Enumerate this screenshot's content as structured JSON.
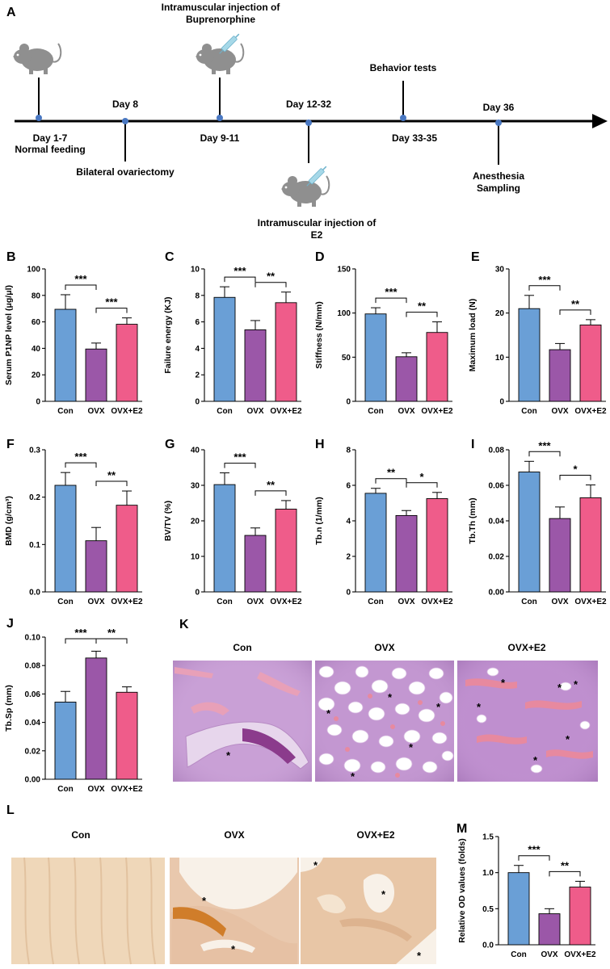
{
  "colors": {
    "con": "#6a9fd6",
    "ovx": "#9b57a8",
    "ovx_e2": "#ef5c8a",
    "mouse": "#8f8f8f",
    "he_bg": "#c9a0d6",
    "stain_bg": "#efd7b9"
  },
  "timeline": {
    "letter": "A",
    "events": [
      {
        "label_lines": [
          "Day 1-7",
          "Normal feeding"
        ],
        "side": "below",
        "mouse": true,
        "syringe": false
      },
      {
        "label_lines": [
          "Day 8"
        ],
        "side": "above",
        "mouse": false,
        "syringe": false,
        "extra_lines": [
          "Bilateral ovariectomy"
        ]
      },
      {
        "label_lines": [
          "Day 9-11"
        ],
        "side": "below",
        "mouse": true,
        "syringe": true,
        "extra_lines": [
          "Intramuscular injection of",
          "Buprenorphine"
        ]
      },
      {
        "label_lines": [
          "Day 12-32"
        ],
        "side": "above",
        "mouse": true,
        "syringe": true,
        "extra_lines": [
          "Intramuscular injection of",
          "E2"
        ]
      },
      {
        "label_lines": [
          "Day 33-35"
        ],
        "side": "below",
        "mouse": false,
        "syringe": false,
        "extra_lines": [
          "Behavior tests"
        ]
      },
      {
        "label_lines": [
          "Day 36"
        ],
        "side": "above",
        "mouse": false,
        "syringe": false,
        "extra_lines": [
          "Anesthesia",
          "Sampling"
        ]
      }
    ]
  },
  "chart_data": [
    {
      "letter": "B",
      "type": "bar",
      "ylabel": "Serum P1NP level (μg/μl)",
      "categories": [
        "Con",
        "OVX",
        "OVX+E2"
      ],
      "values": [
        69.5,
        39.5,
        58.2
      ],
      "errors": [
        11,
        4.5,
        4.8
      ],
      "ylim": [
        0,
        100
      ],
      "yticks": [
        "0",
        "20",
        "40",
        "60",
        "80",
        "100"
      ],
      "sig": [
        {
          "from": 0,
          "to": 1,
          "label": "***"
        },
        {
          "from": 1,
          "to": 2,
          "label": "***"
        }
      ]
    },
    {
      "letter": "C",
      "type": "bar",
      "ylabel": "Failure energy (KJ)",
      "categories": [
        "Con",
        "OVX",
        "OVX+E2"
      ],
      "values": [
        7.85,
        5.4,
        7.45
      ],
      "errors": [
        0.8,
        0.7,
        0.8
      ],
      "ylim": [
        0,
        10
      ],
      "yticks": [
        "0",
        "2",
        "4",
        "6",
        "8",
        "10"
      ],
      "sig": [
        {
          "from": 0,
          "to": 1,
          "label": "***"
        },
        {
          "from": 1,
          "to": 2,
          "label": "**"
        }
      ]
    },
    {
      "letter": "D",
      "type": "bar",
      "ylabel": "Stiffness (N/mm)",
      "categories": [
        "Con",
        "OVX",
        "OVX+E2"
      ],
      "values": [
        99,
        50.5,
        78
      ],
      "errors": [
        7,
        4.5,
        12
      ],
      "ylim": [
        0,
        150
      ],
      "yticks": [
        "0",
        "50",
        "100",
        "150"
      ],
      "sig": [
        {
          "from": 0,
          "to": 1,
          "label": "***"
        },
        {
          "from": 1,
          "to": 2,
          "label": "**"
        }
      ]
    },
    {
      "letter": "E",
      "type": "bar",
      "ylabel": "Maximum load (N)",
      "categories": [
        "Con",
        "OVX",
        "OVX+E2"
      ],
      "values": [
        21,
        11.7,
        17.3
      ],
      "errors": [
        3,
        1.4,
        1.2
      ],
      "ylim": [
        0,
        30
      ],
      "yticks": [
        "0",
        "10",
        "20",
        "30"
      ],
      "sig": [
        {
          "from": 0,
          "to": 1,
          "label": "***"
        },
        {
          "from": 1,
          "to": 2,
          "label": "**"
        }
      ]
    },
    {
      "letter": "F",
      "type": "bar",
      "ylabel": "BMD (g/cm³)",
      "categories": [
        "Con",
        "OVX",
        "OVX+E2"
      ],
      "values": [
        0.225,
        0.108,
        0.183
      ],
      "errors": [
        0.027,
        0.028,
        0.03
      ],
      "ylim": [
        0,
        0.3
      ],
      "yticks": [
        "0.0",
        "0.1",
        "0.2",
        "0.3"
      ],
      "sig": [
        {
          "from": 0,
          "to": 1,
          "label": "***"
        },
        {
          "from": 1,
          "to": 2,
          "label": "**"
        }
      ]
    },
    {
      "letter": "G",
      "type": "bar",
      "ylabel": "BV/TV (%)",
      "categories": [
        "Con",
        "OVX",
        "OVX+E2"
      ],
      "values": [
        30.2,
        15.9,
        23.3
      ],
      "errors": [
        3.3,
        2.1,
        2.4
      ],
      "ylim": [
        0,
        40
      ],
      "yticks": [
        "0",
        "10",
        "20",
        "30",
        "40"
      ],
      "sig": [
        {
          "from": 0,
          "to": 1,
          "label": "***"
        },
        {
          "from": 1,
          "to": 2,
          "label": "**"
        }
      ]
    },
    {
      "letter": "H",
      "type": "bar",
      "ylabel": "Tb.n (1/mm)",
      "categories": [
        "Con",
        "OVX",
        "OVX+E2"
      ],
      "values": [
        5.55,
        4.3,
        5.25
      ],
      "errors": [
        0.28,
        0.28,
        0.35
      ],
      "ylim": [
        0,
        8
      ],
      "yticks": [
        "0",
        "2",
        "4",
        "6",
        "8"
      ],
      "sig": [
        {
          "from": 0,
          "to": 1,
          "label": "**"
        },
        {
          "from": 1,
          "to": 2,
          "label": "*"
        }
      ]
    },
    {
      "letter": "I",
      "type": "bar",
      "ylabel": "Tb.Th (mm)",
      "categories": [
        "Con",
        "OVX",
        "OVX+E2"
      ],
      "values": [
        0.0675,
        0.0413,
        0.053
      ],
      "errors": [
        0.006,
        0.0065,
        0.0072
      ],
      "ylim": [
        0,
        0.08
      ],
      "yticks": [
        "0.00",
        "0.02",
        "0.04",
        "0.06",
        "0.08"
      ],
      "sig": [
        {
          "from": 0,
          "to": 1,
          "label": "***"
        },
        {
          "from": 1,
          "to": 2,
          "label": "*"
        }
      ]
    },
    {
      "letter": "J",
      "type": "bar",
      "ylabel": "Tb.Sp (mm)",
      "categories": [
        "Con",
        "OVX",
        "OVX+E2"
      ],
      "values": [
        0.0543,
        0.0853,
        0.0612
      ],
      "errors": [
        0.0075,
        0.0048,
        0.0038
      ],
      "ylim": [
        0,
        0.1
      ],
      "yticks": [
        "0.00",
        "0.02",
        "0.04",
        "0.06",
        "0.08",
        "0.10"
      ],
      "sig": [
        {
          "from": 1,
          "to": 0,
          "label": "***"
        },
        {
          "from": 1,
          "to": 2,
          "label": "**"
        }
      ]
    },
    {
      "letter": "M",
      "type": "bar",
      "ylabel": "Relative OD values (folds)",
      "categories": [
        "Con",
        "OVX",
        "OVX+E2"
      ],
      "values": [
        1.0,
        0.43,
        0.8
      ],
      "errors": [
        0.1,
        0.07,
        0.08
      ],
      "ylim": [
        0,
        1.5
      ],
      "yticks": [
        "0.0",
        "0.5",
        "1.0",
        "1.5"
      ],
      "sig": [
        {
          "from": 0,
          "to": 1,
          "label": "***"
        },
        {
          "from": 1,
          "to": 2,
          "label": "**"
        }
      ]
    }
  ],
  "histology_he": {
    "letter": "K",
    "titles": [
      "Con",
      "OVX",
      "OVX+E2"
    ],
    "marker": "*"
  },
  "histology_stain": {
    "letter": "L",
    "titles": [
      "Con",
      "OVX",
      "OVX+E2"
    ],
    "marker": "*"
  }
}
